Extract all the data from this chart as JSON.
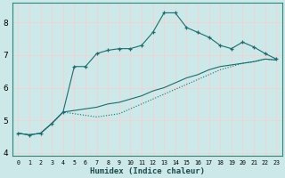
{
  "title": "",
  "xlabel": "Humidex (Indice chaleur)",
  "background_color": "#cce8e8",
  "grid_color": "#ffcccc",
  "line_color": "#1a6e6e",
  "xlim": [
    -0.5,
    23.5
  ],
  "ylim": [
    3.9,
    8.6
  ],
  "yticks": [
    4,
    5,
    6,
    7,
    8
  ],
  "xticks": [
    0,
    1,
    2,
    3,
    4,
    5,
    6,
    7,
    8,
    9,
    10,
    11,
    12,
    13,
    14,
    15,
    16,
    17,
    18,
    19,
    20,
    21,
    22,
    23
  ],
  "line1_x": [
    0,
    1,
    2,
    3,
    4,
    5,
    6,
    7,
    8,
    9,
    10,
    11,
    12,
    13,
    14,
    15,
    16,
    17,
    18,
    19,
    20,
    21,
    22,
    23
  ],
  "line1_y": [
    4.6,
    4.55,
    4.6,
    4.9,
    5.25,
    5.3,
    5.35,
    5.4,
    5.5,
    5.55,
    5.65,
    5.75,
    5.9,
    6.0,
    6.15,
    6.3,
    6.4,
    6.55,
    6.65,
    6.7,
    6.75,
    6.8,
    6.88,
    6.85
  ],
  "line2_x": [
    0,
    1,
    2,
    3,
    4,
    5,
    6,
    7,
    8,
    9,
    10,
    11,
    12,
    13,
    14,
    15,
    16,
    17,
    18,
    19,
    20,
    21,
    22,
    23
  ],
  "line2_y": [
    4.6,
    4.55,
    4.6,
    4.9,
    5.25,
    5.2,
    5.15,
    5.1,
    5.15,
    5.2,
    5.35,
    5.5,
    5.65,
    5.8,
    5.95,
    6.1,
    6.25,
    6.4,
    6.55,
    6.65,
    6.75,
    6.8,
    6.88,
    6.85
  ],
  "line3_x": [
    0,
    1,
    2,
    3,
    4,
    5,
    6,
    7,
    8,
    9,
    10,
    11,
    12,
    13,
    14,
    15,
    16,
    17,
    18,
    19,
    20,
    21,
    22,
    23
  ],
  "line3_y": [
    4.6,
    4.55,
    4.6,
    4.9,
    5.25,
    6.65,
    6.65,
    7.05,
    7.15,
    7.2,
    7.2,
    7.3,
    7.7,
    8.3,
    8.3,
    7.85,
    7.7,
    7.55,
    7.3,
    7.2,
    7.4,
    7.25,
    7.05,
    6.88
  ]
}
